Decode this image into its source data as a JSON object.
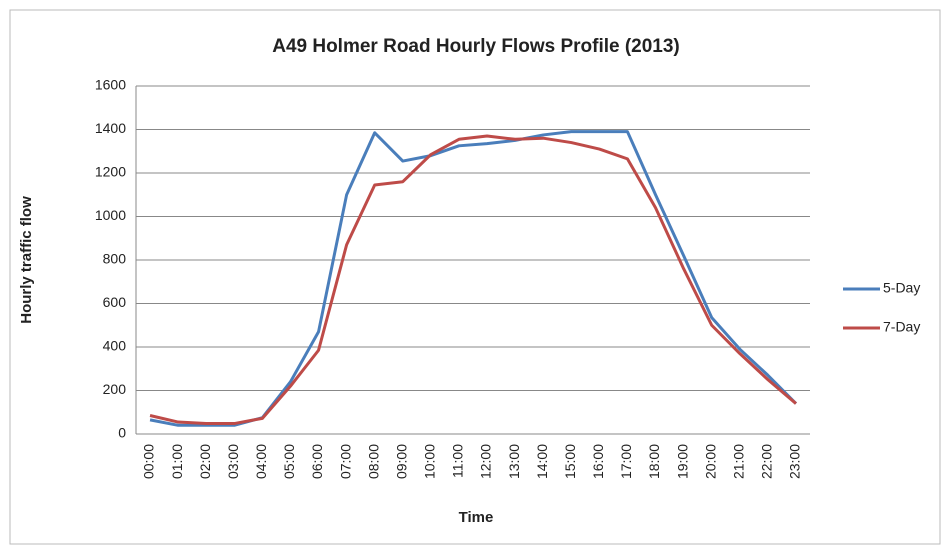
{
  "chart_data": {
    "type": "line",
    "title": "A49 Holmer Road Hourly Flows Profile (2013)",
    "x_label": "Time",
    "y_label": "Hourly traffic flow",
    "categories": [
      "00:00",
      "01:00",
      "02:00",
      "03:00",
      "04:00",
      "05:00",
      "06:00",
      "07:00",
      "08:00",
      "09:00",
      "10:00",
      "11:00",
      "12:00",
      "13:00",
      "14:00",
      "15:00",
      "16:00",
      "17:00",
      "18:00",
      "19:00",
      "20:00",
      "21:00",
      "22:00",
      "23:00"
    ],
    "series": [
      {
        "name": "5-Day",
        "color": "#4a7ebb",
        "values": [
          65,
          40,
          40,
          40,
          75,
          240,
          470,
          1100,
          1385,
          1255,
          1280,
          1325,
          1335,
          1350,
          1375,
          1390,
          1390,
          1390,
          1100,
          820,
          535,
          390,
          270,
          140
        ]
      },
      {
        "name": "7-Day",
        "color": "#be4b48",
        "values": [
          85,
          55,
          48,
          48,
          72,
          220,
          385,
          870,
          1145,
          1160,
          1285,
          1355,
          1370,
          1355,
          1360,
          1340,
          1310,
          1265,
          1040,
          760,
          500,
          370,
          250,
          140
        ]
      }
    ],
    "ylim": [
      0,
      1600
    ],
    "yticks": [
      0,
      200,
      400,
      600,
      800,
      1000,
      1200,
      1400,
      1600
    ],
    "grid": true,
    "legend": "right"
  }
}
